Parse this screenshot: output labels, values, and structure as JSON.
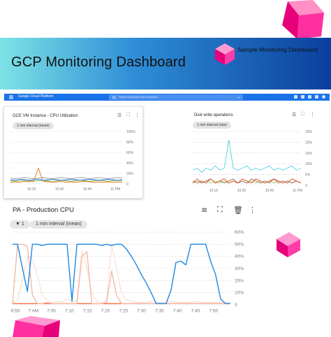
{
  "banner": {
    "title": "GCP Monitoring Dashboard",
    "subtitle": "Sample Monitoring Dashboard"
  },
  "gcp_header": {
    "brand": "Google Cloud Platform",
    "search_placeholder": "Search products and resources"
  },
  "chart_data": [
    {
      "type": "line",
      "title": "GCE VM Instance - CPU Utilization",
      "filter_chip": "1 min interval (mean)",
      "x_ticks": [
        "10:15",
        "10:30",
        "10:45",
        "11 PM"
      ],
      "y_ticks": [
        "0",
        "20%",
        "40%",
        "60%",
        "80%",
        "100%"
      ],
      "ylim": [
        0,
        100
      ],
      "x": [
        0,
        1,
        2,
        3,
        4,
        5,
        6,
        7,
        8,
        9,
        10,
        11,
        12,
        13,
        14,
        15,
        16,
        17,
        18,
        19,
        20,
        21,
        22,
        23,
        24
      ],
      "series": [
        {
          "color": "#e8710a",
          "values": [
            3,
            4,
            3,
            5,
            4,
            6,
            30,
            5,
            4,
            3,
            4,
            5,
            3,
            4,
            3,
            4,
            5,
            4,
            3,
            4,
            3,
            4,
            3,
            4,
            3
          ]
        },
        {
          "color": "#1a73e8",
          "values": [
            8,
            7,
            9,
            8,
            7,
            8,
            9,
            7,
            8,
            9,
            8,
            7,
            8,
            9,
            8,
            7,
            8,
            9,
            8,
            7,
            8,
            9,
            8,
            7,
            8
          ]
        },
        {
          "color": "#7cb342",
          "values": [
            6,
            5,
            6,
            7,
            6,
            5,
            6,
            7,
            6,
            5,
            6,
            7,
            6,
            5,
            6,
            7,
            6,
            5,
            6,
            7,
            6,
            5,
            6,
            7,
            6
          ]
        },
        {
          "color": "#9e9e9e",
          "values": [
            11,
            10,
            11,
            12,
            11,
            10,
            11,
            12,
            11,
            10,
            11,
            12,
            11,
            10,
            11,
            12,
            11,
            10,
            11,
            12,
            11,
            10,
            11,
            12,
            11
          ]
        }
      ]
    },
    {
      "type": "line",
      "title": "Disk write operations",
      "filter_chip": "1 min interval (rate)",
      "x_ticks": [
        "10:15",
        "10:30",
        "10:45",
        "11 PM"
      ],
      "y_ticks": [
        "0",
        "5%",
        "10%",
        "15%",
        "20%",
        "25%"
      ],
      "ylim": [
        0,
        25
      ],
      "x": [
        0,
        1,
        2,
        3,
        4,
        5,
        6,
        7,
        8,
        9,
        10,
        11,
        12,
        13,
        14,
        15,
        16,
        17,
        18,
        19,
        20,
        21,
        22,
        23,
        24
      ],
      "series": [
        {
          "color": "#4dd0e1",
          "values": [
            7,
            8,
            6,
            8,
            7,
            9,
            7,
            8,
            21,
            8,
            7,
            8,
            9,
            7,
            8,
            7,
            8,
            9,
            7,
            8,
            7,
            8,
            9,
            7,
            8
          ]
        },
        {
          "color": "#e64a19",
          "values": [
            1,
            3,
            1,
            2,
            3,
            1,
            2,
            3,
            1,
            2,
            1,
            3,
            2,
            1,
            3,
            2,
            1,
            2,
            3,
            1,
            2,
            1,
            3,
            2,
            1
          ]
        },
        {
          "color": "#8d6e63",
          "values": [
            2,
            1,
            2,
            1,
            3,
            1,
            2,
            1,
            2,
            3,
            1,
            2,
            1,
            3,
            2,
            1,
            2,
            1,
            3,
            2,
            1,
            2,
            1,
            2,
            1
          ]
        },
        {
          "color": "#9ccc65",
          "values": [
            1,
            2,
            1,
            2,
            1,
            2,
            1,
            2,
            1,
            2,
            1,
            2,
            1,
            2,
            1,
            2,
            1,
            2,
            1,
            2,
            1,
            2,
            1,
            2,
            1
          ]
        }
      ]
    },
    {
      "type": "line",
      "title": "PA - Production CPU",
      "filter_count": "1",
      "filter_chip": "1 min interval (mean)",
      "x_ticks": [
        "6:55",
        "7 AM",
        "7:05",
        "7:10",
        "7:15",
        "7:20",
        "7:25",
        "7:30",
        "7:35",
        "7:40",
        "7:45",
        "7:50"
      ],
      "y_ticks": [
        "0",
        "10%",
        "20%",
        "30%",
        "40%",
        "50%",
        "60%"
      ],
      "ylim": [
        0,
        60
      ],
      "x": [
        0,
        1,
        2,
        3,
        4,
        5,
        6,
        7,
        8,
        9,
        10,
        11,
        12,
        13,
        14,
        15,
        16,
        17,
        18,
        19,
        20,
        21,
        22,
        23,
        24,
        25,
        26,
        27,
        28,
        29,
        30,
        31,
        32,
        33,
        34,
        35,
        36,
        37,
        38,
        39,
        40,
        41,
        42,
        43,
        44
      ],
      "series": [
        {
          "color": "#1e88e5",
          "values": [
            50,
            50,
            30,
            11,
            50,
            50,
            49,
            50,
            50,
            50,
            50,
            50,
            3,
            50,
            50,
            50,
            50,
            50,
            49,
            50,
            49,
            50,
            50,
            46,
            40,
            33,
            25,
            18,
            10,
            1,
            1,
            1,
            12,
            35,
            36,
            33,
            50,
            50,
            50,
            50,
            36,
            25,
            5,
            1,
            1
          ]
        },
        {
          "color": "#f4b9a4",
          "values": [
            1,
            50,
            50,
            48,
            8,
            1,
            1,
            2,
            1,
            1,
            1,
            1,
            1,
            1,
            40,
            44,
            1,
            1,
            1,
            2,
            28,
            8,
            1,
            1,
            1,
            1,
            1,
            1,
            1,
            1,
            1,
            1,
            1,
            1,
            1,
            1,
            1,
            1,
            1,
            1,
            1,
            1,
            1,
            1,
            1
          ]
        },
        {
          "color": "#fbe3d8",
          "values": [
            2,
            4,
            20,
            40,
            38,
            24,
            8,
            4,
            2,
            3,
            2,
            5,
            2,
            4,
            45,
            30,
            10,
            3,
            2,
            4,
            50,
            30,
            10,
            4,
            3,
            2,
            2,
            2,
            3,
            2,
            2,
            2,
            3,
            2,
            2,
            2,
            2,
            3,
            2,
            2,
            2,
            2,
            2,
            2,
            2
          ]
        },
        {
          "color": "#ff7043",
          "values": [
            1,
            1,
            1,
            1,
            1,
            1,
            1,
            1,
            1,
            1,
            1,
            1,
            1,
            1,
            1,
            1,
            1,
            1,
            1,
            1,
            1,
            1,
            1,
            1,
            1,
            1,
            1,
            1,
            1,
            1,
            1,
            1,
            1,
            1,
            1,
            1,
            1,
            1,
            1,
            1,
            1,
            1,
            1,
            1,
            1
          ]
        }
      ]
    }
  ]
}
